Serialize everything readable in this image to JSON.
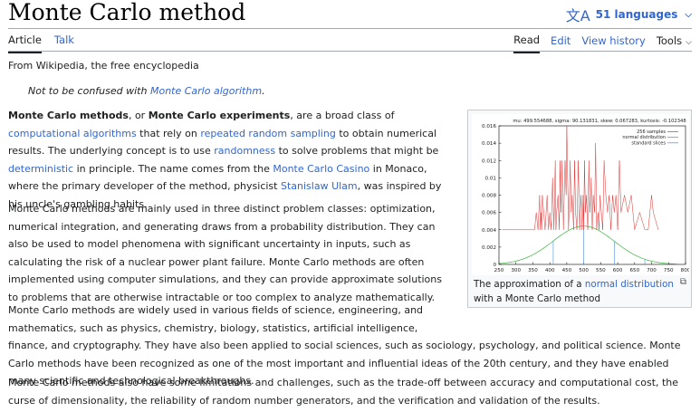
{
  "page": {
    "title": "Monte Carlo method",
    "languages_label": "51 languages"
  },
  "tabs": {
    "article": "Article",
    "talk": "Talk",
    "read": "Read",
    "edit": "Edit",
    "view_history": "View history",
    "tools": "Tools"
  },
  "content": {
    "from": "From Wikipedia, the free encyclopedia",
    "hatnote_prefix": "Not to be confused with ",
    "hatnote_link": "Monte Carlo algorithm",
    "hatnote_suffix": ".",
    "p1": {
      "b1": "Monte Carlo methods",
      "t1": ", or ",
      "b2": "Monte Carlo experiments",
      "t2": ", are a broad class of ",
      "l1": "computational algorithms",
      "t3": " that rely on ",
      "l2": "repeated random sampling",
      "t4": " to obtain numerical results. The underlying concept is to use ",
      "l3": "randomness",
      "t5": " to solve problems that might be ",
      "l4": "deterministic",
      "t6": " in principle. The name comes from the ",
      "l5": "Monte Carlo Casino",
      "t7": " in Monaco, where the primary developer of the method, physicist ",
      "l6": "Stanislaw Ulam",
      "t8": ", was inspired by his uncle's gambling habits."
    },
    "p2": "Monte Carlo methods are mainly used in three distinct problem classes: optimization, numerical integration, and generating draws from a probability distribution. They can also be used to model phenomena with significant uncertainty in inputs, such as calculating the risk of a nuclear power plant failure. Monte Carlo methods are often implemented using computer simulations, and they can provide approximate solutions to problems that are otherwise intractable or too complex to analyze mathematically.",
    "p3": "Monte Carlo methods are widely used in various fields of science, engineering, and mathematics, such as physics, chemistry, biology, statistics, artificial intelligence, finance, and cryptography. They have also been applied to social sciences, such as sociology, psychology, and political science. Monte Carlo methods have been recognized as one of the most important and influential ideas of the 20th century, and they have enabled many scientific and technological breakthroughs.",
    "p4": "Monte Carlo methods also have some limitations and challenges, such as the trade-off between accuracy and computational cost, the curse of dimensionality, the reliability of random number generators, and the verification and validation of the results."
  },
  "figure": {
    "caption_prefix": "The approximation of a ",
    "caption_link": "normal distribution",
    "caption_suffix": " with a Monte Carlo method"
  },
  "chart_data": {
    "type": "line",
    "title": "mu: 499.554688,  sigma: 90.131831,  skew: 0.067283,  kurtosis: -0.102348",
    "xlim": [
      250,
      800
    ],
    "ylim": [
      0,
      0.016
    ],
    "xticks": [
      250,
      300,
      350,
      400,
      450,
      500,
      550,
      600,
      650,
      700,
      750,
      800
    ],
    "yticks": [
      0,
      0.002,
      0.004,
      0.006,
      0.008,
      0.01,
      0.012,
      0.014,
      0.016
    ],
    "ytick_labels": [
      "0",
      "0.002",
      "0.004",
      "0.006",
      "0.008",
      "0.01",
      "0.012",
      "0.014",
      "0.016"
    ],
    "legend": [
      "256 samples",
      "normal distribution",
      "standard slices"
    ],
    "colors": {
      "samples": "#e03030",
      "normal": "#3cb43c",
      "slices": "#4a90d9"
    },
    "samples": {
      "x": [
        260,
        300,
        325,
        345,
        355,
        360,
        365,
        370,
        372,
        374,
        376,
        378,
        382,
        386,
        392,
        396,
        400,
        404,
        408,
        412,
        416,
        418,
        420,
        424,
        428,
        430,
        433,
        436,
        440,
        445,
        448,
        450,
        455,
        458,
        460,
        463,
        466,
        470,
        473,
        476,
        480,
        484,
        488,
        492,
        495,
        498,
        500,
        502,
        505,
        508,
        512,
        515,
        518,
        522,
        525,
        528,
        532,
        535,
        538,
        542,
        545,
        548,
        552,
        556,
        560,
        565,
        570,
        575,
        580,
        585,
        590,
        595,
        600,
        605,
        610,
        620,
        630,
        640,
        650,
        665,
        680,
        690,
        700,
        705,
        720
      ],
      "y": [
        0.004,
        0.004,
        0.004,
        0.004,
        0.004,
        0.006,
        0.004,
        0.008,
        0.004,
        0.006,
        0.004,
        0.008,
        0.006,
        0.004,
        0.008,
        0.004,
        0.006,
        0.004,
        0.01,
        0.004,
        0.012,
        0.004,
        0.006,
        0.008,
        0.004,
        0.012,
        0.006,
        0.012,
        0.004,
        0.012,
        0.008,
        0.016,
        0.004,
        0.008,
        0.012,
        0.006,
        0.008,
        0.004,
        0.012,
        0.006,
        0.004,
        0.012,
        0.004,
        0.008,
        0.004,
        0.008,
        0.004,
        0.012,
        0.006,
        0.008,
        0.004,
        0.012,
        0.006,
        0.01,
        0.004,
        0.008,
        0.006,
        0.014,
        0.004,
        0.006,
        0.004,
        0.008,
        0.006,
        0.004,
        0.012,
        0.008,
        0.006,
        0.008,
        0.004,
        0.008,
        0.006,
        0.008,
        0.004,
        0.012,
        0.006,
        0.008,
        0.006,
        0.008,
        0.004,
        0.006,
        0.004,
        0.004,
        0.008,
        0.006,
        0.004
      ]
    },
    "normal": {
      "mu": 499.554688,
      "sigma": 90.131831
    },
    "slices": [
      410,
      500,
      590,
      680
    ]
  }
}
